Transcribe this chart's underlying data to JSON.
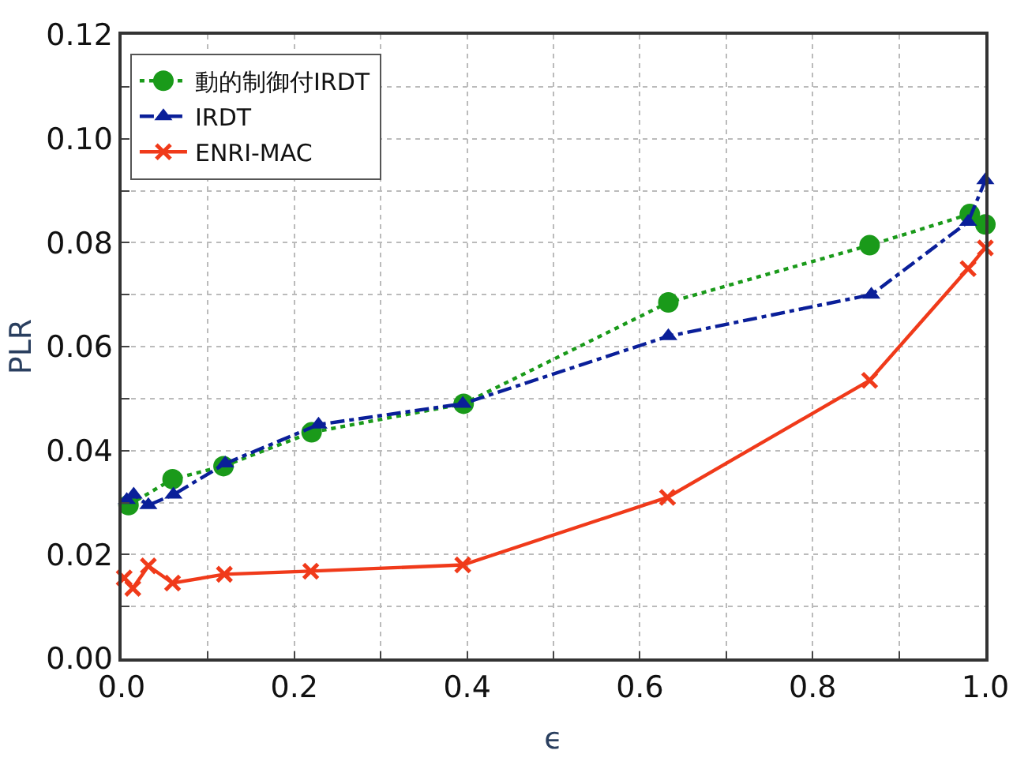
{
  "chart_data": {
    "type": "line",
    "xlabel": "ϵ",
    "ylabel": "PLR",
    "xlim": [
      0,
      1
    ],
    "ylim": [
      0,
      0.12
    ],
    "xticks": [
      {
        "value": 0,
        "label": "0.0"
      },
      {
        "value": 0.1,
        "label": null
      },
      {
        "value": 0.2,
        "label": "0.2"
      },
      {
        "value": 0.3,
        "label": null
      },
      {
        "value": 0.4,
        "label": "0.4"
      },
      {
        "value": 0.5,
        "label": null
      },
      {
        "value": 0.6,
        "label": "0.6"
      },
      {
        "value": 0.7,
        "label": null
      },
      {
        "value": 0.8,
        "label": "0.8"
      },
      {
        "value": 0.9,
        "label": null
      },
      {
        "value": 1,
        "label": "1.0"
      }
    ],
    "yticks": [
      {
        "value": 0,
        "label": "0.00"
      },
      {
        "value": 0.01,
        "label": null
      },
      {
        "value": 0.02,
        "label": "0.02"
      },
      {
        "value": 0.03,
        "label": null
      },
      {
        "value": 0.04,
        "label": "0.04"
      },
      {
        "value": 0.05,
        "label": null
      },
      {
        "value": 0.06,
        "label": "0.06"
      },
      {
        "value": 0.07,
        "label": null
      },
      {
        "value": 0.08,
        "label": "0.08"
      },
      {
        "value": 0.09,
        "label": null
      },
      {
        "value": 0.1,
        "label": "0.10"
      },
      {
        "value": 0.11,
        "label": null
      },
      {
        "value": 0.12,
        "label": "0.12"
      }
    ],
    "grid": true,
    "legend": "top left",
    "series": [
      {
        "name": "動的制御付IRDT",
        "color": "#1a9a1a",
        "marker": "circle",
        "line_style": "dotted",
        "x": [
          0.008,
          0.059,
          0.118,
          0.22,
          0.396,
          0.633,
          0.866,
          0.982,
          1.0
        ],
        "values": [
          0.0295,
          0.0345,
          0.037,
          0.0435,
          0.049,
          0.0685,
          0.0795,
          0.0855,
          0.0835
        ]
      },
      {
        "name": "IRDT",
        "color": "#0a1f99",
        "marker": "triangle",
        "line_style": "dashdot",
        "x": [
          0.006,
          0.014,
          0.031,
          0.06,
          0.12,
          0.228,
          0.395,
          0.633,
          0.868,
          0.98,
          1.0
        ],
        "values": [
          0.0305,
          0.0315,
          0.0295,
          0.0315,
          0.0375,
          0.045,
          0.049,
          0.062,
          0.07,
          0.084,
          0.092
        ]
      },
      {
        "name": "ENRI-MAC",
        "color": "#f03a1a",
        "marker": "cross",
        "line_style": "solid",
        "x": [
          0.003,
          0.013,
          0.031,
          0.059,
          0.119,
          0.219,
          0.395,
          0.632,
          0.866,
          0.98,
          1.0
        ],
        "values": [
          0.0155,
          0.0135,
          0.0178,
          0.0145,
          0.0162,
          0.0168,
          0.018,
          0.031,
          0.0535,
          0.075,
          0.079
        ]
      }
    ]
  }
}
